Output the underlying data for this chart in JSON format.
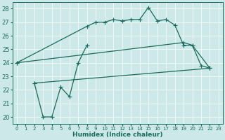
{
  "xlabel": "Humidex (Indice chaleur)",
  "xlim": [
    -0.5,
    23.5
  ],
  "ylim": [
    19.5,
    28.5
  ],
  "xticks": [
    0,
    1,
    2,
    3,
    4,
    5,
    6,
    7,
    8,
    9,
    10,
    11,
    12,
    13,
    14,
    15,
    16,
    17,
    18,
    19,
    20,
    21,
    22,
    23
  ],
  "yticks": [
    20,
    21,
    22,
    23,
    24,
    25,
    26,
    27,
    28
  ],
  "bg_color": "#cde8e8",
  "line_color": "#1a6b5a",
  "line1_x": [
    0,
    8,
    9,
    10,
    11,
    12,
    13,
    14,
    15,
    16,
    17,
    18,
    19,
    20,
    21,
    22
  ],
  "line1_y": [
    24.0,
    26.7,
    27.0,
    27.0,
    27.2,
    27.1,
    27.2,
    27.2,
    28.1,
    27.1,
    27.2,
    26.8,
    25.3,
    25.3,
    23.8,
    23.6
  ],
  "line2_x": [
    2,
    3,
    4,
    5,
    6,
    7,
    8
  ],
  "line2_y": [
    22.5,
    20.0,
    20.0,
    22.2,
    21.5,
    24.0,
    25.3
  ],
  "line3_x": [
    0,
    19,
    20,
    22
  ],
  "line3_y": [
    24.0,
    25.5,
    25.3,
    23.6
  ],
  "line4_x": [
    2,
    22
  ],
  "line4_y": [
    22.5,
    23.6
  ]
}
